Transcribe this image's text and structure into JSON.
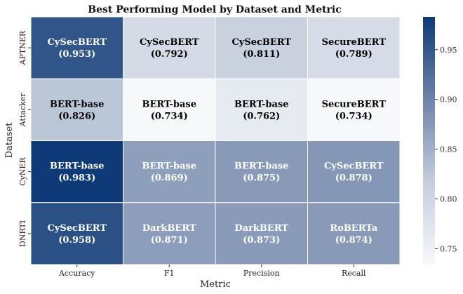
{
  "chart_data": {
    "type": "heatmap",
    "title": "Best Performing Model by Dataset and Metric",
    "xlabel": "Metric",
    "ylabel": "Dataset",
    "x_categories": [
      "Accuracy",
      "F1",
      "Precision",
      "Recall"
    ],
    "y_categories": [
      "APTNER",
      "Attacker",
      "CyNER",
      "DNRTI"
    ],
    "models": [
      [
        "CySecBERT",
        "CySecBERT",
        "CySecBERT",
        "SecureBERT"
      ],
      [
        "BERT-base",
        "BERT-base",
        "BERT-base",
        "SecureBERT"
      ],
      [
        "BERT-base",
        "BERT-base",
        "BERT-base",
        "CySecBERT"
      ],
      [
        "CySecBERT",
        "DarkBERT",
        "DarkBERT",
        "RoBERTa"
      ]
    ],
    "values": [
      [
        0.953,
        0.792,
        0.811,
        0.789
      ],
      [
        0.826,
        0.734,
        0.762,
        0.734
      ],
      [
        0.983,
        0.869,
        0.875,
        0.878
      ],
      [
        0.958,
        0.871,
        0.873,
        0.874
      ]
    ],
    "labels": [
      [
        "(0.953)",
        "(0.792)",
        "(0.811)",
        "(0.789)"
      ],
      [
        "(0.826)",
        "(0.734)",
        "(0.762)",
        "(0.734)"
      ],
      [
        "(0.983)",
        "(0.869)",
        "(0.875)",
        "(0.878)"
      ],
      [
        "(0.958)",
        "(0.871)",
        "(0.873)",
        "(0.874)"
      ]
    ],
    "colorbar": {
      "range": [
        0.734,
        0.983
      ],
      "ticks": [
        "0.75",
        "0.80",
        "0.85",
        "0.90",
        "0.95"
      ],
      "colors": [
        "#f7f8fb",
        "#c5cedd",
        "#6d83a8",
        "#0f3a78"
      ]
    }
  }
}
